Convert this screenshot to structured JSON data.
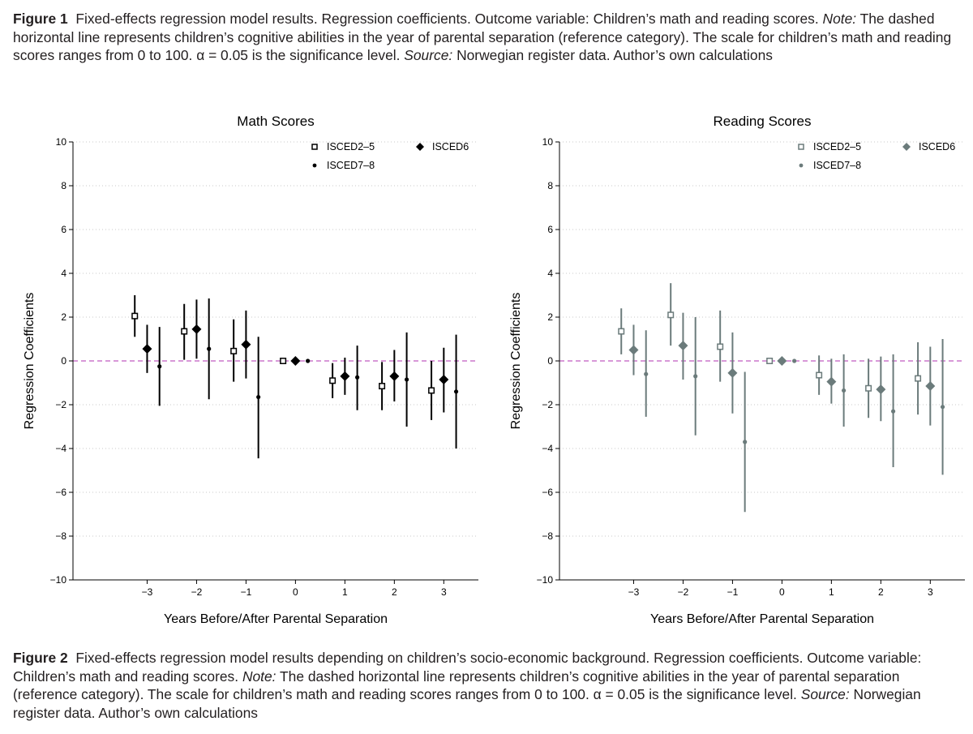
{
  "captions": {
    "figure1": {
      "label": "Figure 1",
      "text": "Fixed-effects regression model results. Regression coefficients. Outcome variable: Children’s math and reading scores.",
      "note_label": "Note:",
      "note": "The dashed horizontal line represents children’s cognitive abilities in the year of parental separation (reference category). The scale for children’s math and reading scores ranges from 0 to 100. α = 0.05 is the significance level.",
      "source_label": "Source:",
      "source": "Norwegian register data. Author’s own calculations"
    },
    "figure2": {
      "label": "Figure 2",
      "text": "Fixed-effects regression model results depending on children’s socio-economic background. Regression coefficients. Outcome variable: Children’s math and reading scores.",
      "note_label": "Note:",
      "note": "The dashed horizontal line represents children’s cognitive abilities in the year of parental separation (reference category). The scale for children’s math and reading scores ranges from 0 to 100. α = 0.05 is the significance level.",
      "source_label": "Source:",
      "source": "Norwegian register data. Author’s own calculations"
    }
  },
  "chart_data": [
    {
      "type": "scatter",
      "title": "Math Scores",
      "xlabel": "Years Before/After Parental Separation",
      "ylabel": "Regression Coefficients",
      "xlim": [
        -4.5,
        3.7
      ],
      "ylim": [
        -10,
        10
      ],
      "xticks": [
        -3,
        -2,
        -1,
        0,
        1,
        2,
        3
      ],
      "yticks": [
        10,
        8,
        6,
        4,
        2,
        0,
        -2,
        -4,
        -6,
        -8,
        -10
      ],
      "grid": "horizontal dotted",
      "reference_line": 0,
      "reference_color": "#cc77cc",
      "series_color": "#000000",
      "legend_placement": "top-right",
      "series": [
        {
          "name": "ISCED2–5",
          "marker": "hollow-square",
          "points": [
            {
              "x": -3,
              "y": 2.05,
              "lo": 1.1,
              "hi": 3.0
            },
            {
              "x": -2,
              "y": 1.35,
              "lo": 0.05,
              "hi": 2.6
            },
            {
              "x": -1,
              "y": 0.45,
              "lo": -0.95,
              "hi": 1.9
            },
            {
              "x": 0,
              "y": 0,
              "lo": 0,
              "hi": 0
            },
            {
              "x": 1,
              "y": -0.9,
              "lo": -1.7,
              "hi": -0.1
            },
            {
              "x": 2,
              "y": -1.15,
              "lo": -2.25,
              "hi": -0.05
            },
            {
              "x": 3,
              "y": -1.35,
              "lo": -2.7,
              "hi": 0.0
            }
          ]
        },
        {
          "name": "ISCED6",
          "marker": "diamond",
          "points": [
            {
              "x": -3,
              "y": 0.55,
              "lo": -0.55,
              "hi": 1.65
            },
            {
              "x": -2,
              "y": 1.45,
              "lo": 0.1,
              "hi": 2.8
            },
            {
              "x": -1,
              "y": 0.75,
              "lo": -0.8,
              "hi": 2.3
            },
            {
              "x": 0,
              "y": 0,
              "lo": 0,
              "hi": 0
            },
            {
              "x": 1,
              "y": -0.7,
              "lo": -1.55,
              "hi": 0.15
            },
            {
              "x": 2,
              "y": -0.7,
              "lo": -1.85,
              "hi": 0.5
            },
            {
              "x": 3,
              "y": -0.85,
              "lo": -2.35,
              "hi": 0.6
            }
          ]
        },
        {
          "name": "ISCED7–8",
          "marker": "dot",
          "points": [
            {
              "x": -3,
              "y": -0.25,
              "lo": -2.05,
              "hi": 1.55
            },
            {
              "x": -2,
              "y": 0.55,
              "lo": -1.75,
              "hi": 2.85
            },
            {
              "x": -1,
              "y": -1.65,
              "lo": -4.45,
              "hi": 1.1
            },
            {
              "x": 0,
              "y": 0,
              "lo": 0,
              "hi": 0
            },
            {
              "x": 1,
              "y": -0.75,
              "lo": -2.25,
              "hi": 0.7
            },
            {
              "x": 2,
              "y": -0.85,
              "lo": -3.0,
              "hi": 1.3
            },
            {
              "x": 3,
              "y": -1.4,
              "lo": -4.0,
              "hi": 1.2
            }
          ]
        }
      ]
    },
    {
      "type": "scatter",
      "title": "Reading Scores",
      "xlabel": "Years Before/After Parental Separation",
      "ylabel": "Regression Coefficients",
      "xlim": [
        -4.5,
        3.7
      ],
      "ylim": [
        -10,
        10
      ],
      "xticks": [
        -3,
        -2,
        -1,
        0,
        1,
        2,
        3
      ],
      "yticks": [
        10,
        8,
        6,
        4,
        2,
        0,
        -2,
        -4,
        -6,
        -8,
        -10
      ],
      "grid": "horizontal dotted",
      "reference_line": 0,
      "reference_color": "#cc77cc",
      "series_color": "#6b7b7b",
      "legend_placement": "top-right",
      "series": [
        {
          "name": "ISCED2–5",
          "marker": "hollow-square",
          "points": [
            {
              "x": -3,
              "y": 1.35,
              "lo": 0.3,
              "hi": 2.4
            },
            {
              "x": -2,
              "y": 2.1,
              "lo": 0.7,
              "hi": 3.55
            },
            {
              "x": -1,
              "y": 0.65,
              "lo": -0.95,
              "hi": 2.3
            },
            {
              "x": 0,
              "y": 0,
              "lo": 0,
              "hi": 0
            },
            {
              "x": 1,
              "y": -0.65,
              "lo": -1.55,
              "hi": 0.25
            },
            {
              "x": 2,
              "y": -1.25,
              "lo": -2.6,
              "hi": 0.1
            },
            {
              "x": 3,
              "y": -0.8,
              "lo": -2.45,
              "hi": 0.85
            }
          ]
        },
        {
          "name": "ISCED6",
          "marker": "diamond",
          "points": [
            {
              "x": -3,
              "y": 0.5,
              "lo": -0.65,
              "hi": 1.65
            },
            {
              "x": -2,
              "y": 0.7,
              "lo": -0.85,
              "hi": 2.2
            },
            {
              "x": -1,
              "y": -0.55,
              "lo": -2.4,
              "hi": 1.3
            },
            {
              "x": 0,
              "y": 0,
              "lo": 0,
              "hi": 0
            },
            {
              "x": 1,
              "y": -0.95,
              "lo": -1.95,
              "hi": 0.1
            },
            {
              "x": 2,
              "y": -1.3,
              "lo": -2.75,
              "hi": 0.2
            },
            {
              "x": 3,
              "y": -1.15,
              "lo": -2.95,
              "hi": 0.65
            }
          ]
        },
        {
          "name": "ISCED7–8",
          "marker": "dot",
          "points": [
            {
              "x": -3,
              "y": -0.6,
              "lo": -2.55,
              "hi": 1.4
            },
            {
              "x": -2,
              "y": -0.7,
              "lo": -3.4,
              "hi": 2.0
            },
            {
              "x": -1,
              "y": -3.7,
              "lo": -6.9,
              "hi": -0.5
            },
            {
              "x": 0,
              "y": 0,
              "lo": 0,
              "hi": 0
            },
            {
              "x": 1,
              "y": -1.35,
              "lo": -3.0,
              "hi": 0.3
            },
            {
              "x": 2,
              "y": -2.3,
              "lo": -4.85,
              "hi": 0.3
            },
            {
              "x": 3,
              "y": -2.1,
              "lo": -5.2,
              "hi": 1.0
            }
          ]
        }
      ]
    }
  ]
}
